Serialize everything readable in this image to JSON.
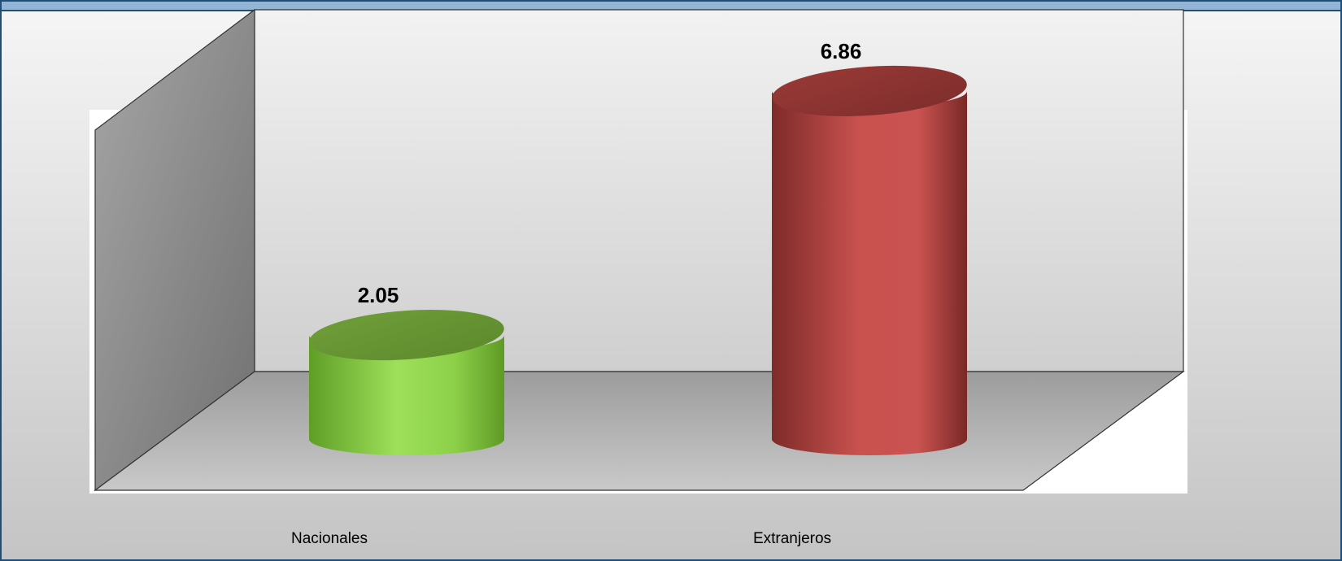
{
  "chart_data": {
    "type": "bar",
    "style": "3d-cylinder",
    "categories": [
      "Nacionales",
      "Extranjeros"
    ],
    "series": [
      {
        "values": [
          2.05,
          6.86
        ]
      }
    ],
    "data_labels": [
      "2.05",
      "6.86"
    ],
    "ylim": [
      0,
      7.5
    ],
    "grid": false,
    "legend": "none",
    "colors": {
      "bars": [
        "#8ed14a",
        "#c0504d"
      ],
      "frame_border": "#1f4e79",
      "title_strip": "#94b4d6",
      "background_top": "#f4f4f4",
      "background_bottom": "#c8c8c8"
    }
  }
}
